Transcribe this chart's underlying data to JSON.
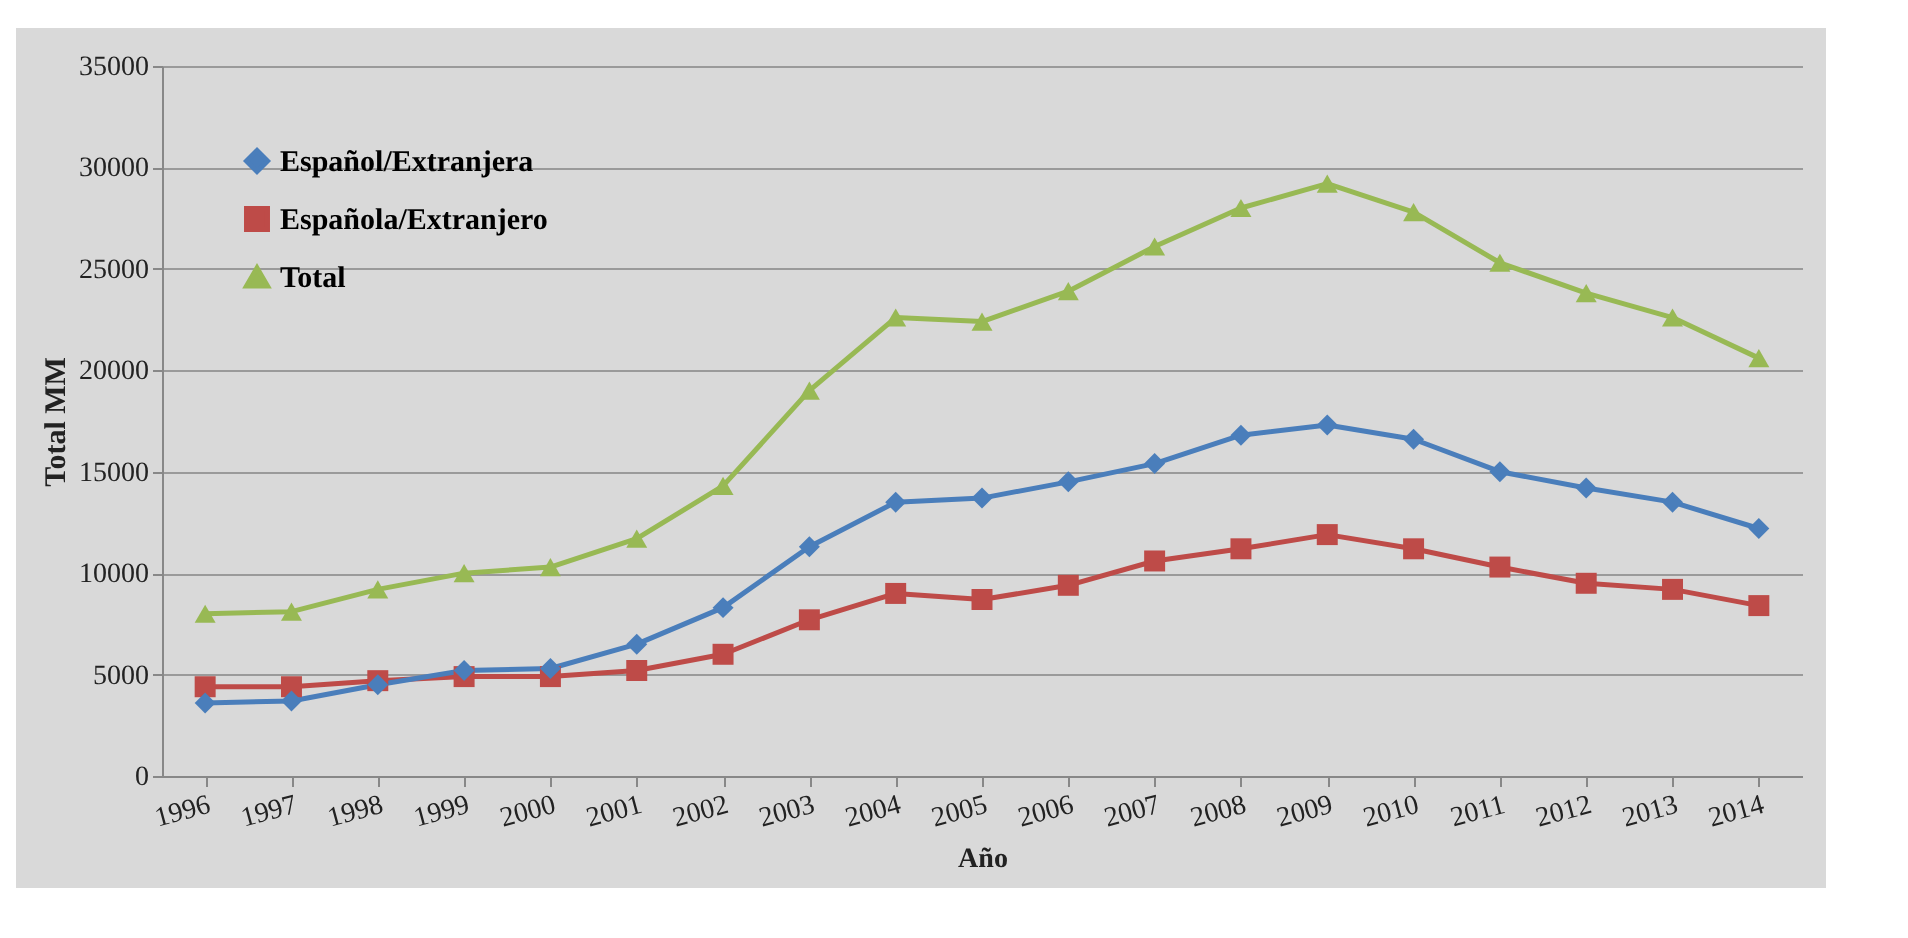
{
  "chart_data": {
    "type": "line",
    "xlabel": "Año",
    "ylabel": "Total MM",
    "categories": [
      "1996",
      "1997",
      "1998",
      "1999",
      "2000",
      "2001",
      "2002",
      "2003",
      "2004",
      "2005",
      "2006",
      "2007",
      "2008",
      "2009",
      "2010",
      "2011",
      "2012",
      "2013",
      "2014"
    ],
    "series": [
      {
        "name": "Español/Extranjera",
        "color": "#4a7ebb",
        "marker": "diamond",
        "values": [
          3600,
          3700,
          4500,
          5200,
          5300,
          6500,
          8300,
          11300,
          13500,
          13700,
          14500,
          15400,
          16800,
          17300,
          16600,
          15000,
          14200,
          13500,
          12200
        ]
      },
      {
        "name": "Española/Extranjero",
        "color": "#be4b48",
        "marker": "square",
        "values": [
          4400,
          4400,
          4700,
          4900,
          4900,
          5200,
          6000,
          7700,
          9000,
          8700,
          9400,
          10600,
          11200,
          11900,
          11200,
          10300,
          9500,
          9200,
          8400
        ]
      },
      {
        "name": "Total",
        "color": "#98b954",
        "marker": "triangle",
        "values": [
          8000,
          8100,
          9200,
          10000,
          10300,
          11700,
          14300,
          19000,
          22600,
          22400,
          23900,
          26100,
          28000,
          29200,
          27800,
          25300,
          23800,
          22600,
          20600
        ]
      }
    ],
    "ylim": [
      0,
      35000
    ],
    "yticks": [
      0,
      5000,
      10000,
      15000,
      20000,
      25000,
      30000,
      35000
    ],
    "grid": "y",
    "legend": "top left",
    "line_style": "solid"
  }
}
